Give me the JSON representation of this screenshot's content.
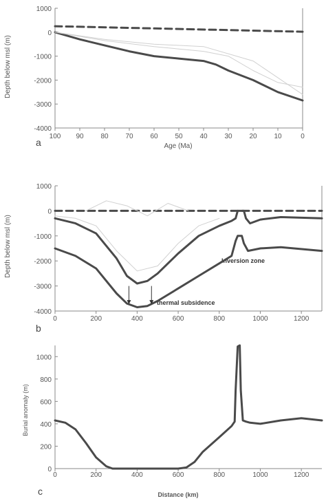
{
  "colors": {
    "axis": "#888888",
    "main_line": "#4a4a4a",
    "light_line": "#d0d0d0",
    "text": "#555555"
  },
  "chart_data": [
    {
      "panel": "a",
      "type": "line",
      "xlabel": "Age (Ma)",
      "ylabel": "Depth below msl (m)",
      "xlim": [
        100,
        0
      ],
      "ylim": [
        -4000,
        1000
      ],
      "x_ticks": [
        100,
        90,
        80,
        70,
        60,
        50,
        40,
        30,
        20,
        10,
        0
      ],
      "y_ticks": [
        1000,
        0,
        -1000,
        -2000,
        -3000,
        -4000
      ],
      "series": [
        {
          "style": "dashed",
          "x": [
            100,
            0
          ],
          "y": [
            250,
            20
          ]
        },
        {
          "style": "thick",
          "x": [
            100,
            90,
            80,
            70,
            60,
            50,
            40,
            35,
            30,
            20,
            10,
            0
          ],
          "y": [
            0,
            -300,
            -550,
            -800,
            -1000,
            -1100,
            -1200,
            -1350,
            -1600,
            -2000,
            -2500,
            -2850
          ]
        },
        {
          "style": "light",
          "x": [
            100,
            80,
            60,
            40,
            20,
            0
          ],
          "y": [
            0,
            -300,
            -500,
            -600,
            -1200,
            -2600
          ]
        },
        {
          "style": "light",
          "x": [
            100,
            80,
            60,
            40,
            30,
            20,
            10,
            0
          ],
          "y": [
            0,
            -350,
            -600,
            -800,
            -1000,
            -1600,
            -2100,
            -2300
          ]
        }
      ]
    },
    {
      "panel": "b",
      "type": "line",
      "xlabel": "",
      "ylabel": "Depth below msl (m)",
      "xlim": [
        0,
        1300
      ],
      "ylim": [
        -4000,
        1000
      ],
      "x_ticks": [
        0,
        200,
        400,
        600,
        800,
        1000,
        1200
      ],
      "y_ticks": [
        1000,
        0,
        -1000,
        -2000,
        -3000,
        -4000
      ],
      "annotations": [
        "Inversion zone",
        "thermal subsidence"
      ],
      "arrows_x": [
        360,
        470
      ],
      "series": [
        {
          "style": "dashed",
          "x": [
            0,
            1300
          ],
          "y": [
            0,
            0
          ]
        },
        {
          "style": "thick",
          "x": [
            0,
            100,
            200,
            300,
            350,
            400,
            450,
            500,
            600,
            700,
            800,
            860,
            880,
            890,
            920,
            930,
            950,
            1000,
            1100,
            1300
          ],
          "y": [
            -300,
            -500,
            -900,
            -1900,
            -2600,
            -2900,
            -2800,
            -2500,
            -1700,
            -1000,
            -600,
            -400,
            -300,
            0,
            0,
            -300,
            -500,
            -350,
            -250,
            -300
          ]
        },
        {
          "style": "thick",
          "x": [
            0,
            100,
            200,
            300,
            350,
            400,
            450,
            500,
            600,
            700,
            800,
            860,
            880,
            890,
            910,
            920,
            940,
            1000,
            1100,
            1300
          ],
          "y": [
            -1500,
            -1800,
            -2300,
            -3300,
            -3700,
            -3850,
            -3800,
            -3600,
            -3100,
            -2600,
            -2100,
            -1800,
            -1200,
            -1000,
            -1000,
            -1300,
            -1600,
            -1500,
            -1450,
            -1600
          ]
        },
        {
          "style": "light",
          "x": [
            0,
            100,
            200,
            300,
            400,
            500,
            600,
            700,
            800
          ],
          "y": [
            -200,
            -300,
            -600,
            -1600,
            -2400,
            -2200,
            -1300,
            -600,
            -300
          ]
        },
        {
          "style": "light",
          "x": [
            150,
            250,
            350,
            450,
            550,
            650
          ],
          "y": [
            0,
            400,
            200,
            -200,
            300,
            0
          ]
        }
      ]
    },
    {
      "panel": "c",
      "type": "line",
      "xlabel": "Distance (km)",
      "ylabel": "Burial anomaly (m)",
      "xlim": [
        0,
        1300
      ],
      "ylim": [
        0,
        1100
      ],
      "x_ticks": [
        0,
        200,
        400,
        600,
        800,
        1000,
        1200
      ],
      "y_ticks": [
        0,
        200,
        400,
        600,
        800,
        1000
      ],
      "series": [
        {
          "style": "thick",
          "x": [
            0,
            50,
            100,
            150,
            200,
            250,
            280,
            300,
            400,
            500,
            600,
            640,
            680,
            720,
            800,
            860,
            875,
            880,
            890,
            900,
            905,
            915,
            930,
            950,
            1000,
            1100,
            1200,
            1250,
            1300
          ],
          "y": [
            430,
            410,
            350,
            230,
            100,
            20,
            0,
            0,
            0,
            0,
            0,
            10,
            60,
            150,
            280,
            380,
            420,
            700,
            1090,
            1100,
            700,
            430,
            420,
            410,
            400,
            430,
            450,
            440,
            430
          ]
        }
      ]
    }
  ],
  "panel_letters": [
    "a",
    "b",
    "c"
  ]
}
